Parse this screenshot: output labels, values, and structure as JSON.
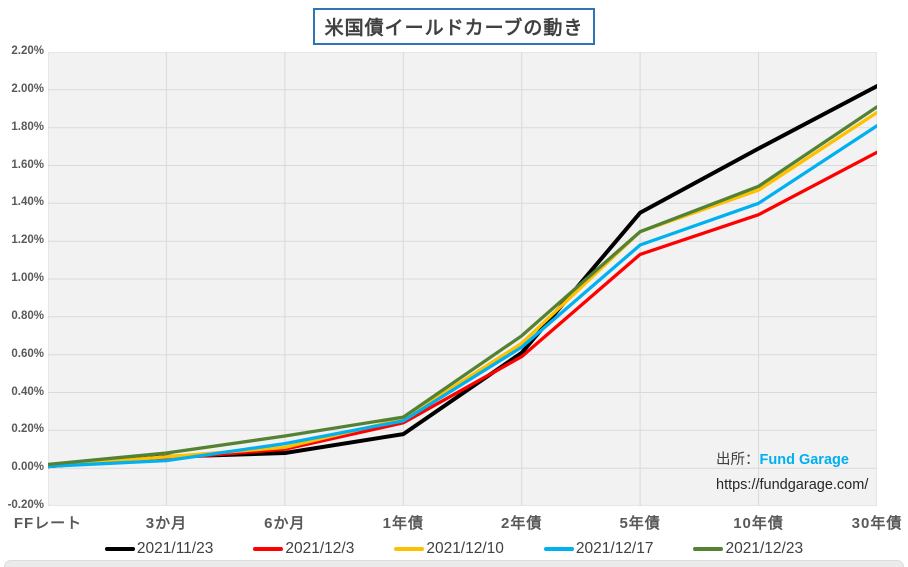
{
  "title": "米国債イールドカーブの動き",
  "source": {
    "label": "出所：",
    "name": "Fund Garage",
    "url": "https://fundgarage.com/"
  },
  "chart_data": {
    "type": "line",
    "title": "米国債イールドカーブの動き",
    "categories": [
      "FFレート",
      "3か月",
      "6か月",
      "1年債",
      "2年債",
      "5年債",
      "10年債",
      "30年債"
    ],
    "series": [
      {
        "name": "2021/11/23",
        "color": "#000000",
        "values": [
          0.01,
          0.06,
          0.08,
          0.18,
          0.61,
          1.35,
          1.69,
          2.02
        ]
      },
      {
        "name": "2021/12/3",
        "color": "#ff0000",
        "values": [
          0.01,
          0.05,
          0.1,
          0.24,
          0.59,
          1.13,
          1.34,
          1.67
        ]
      },
      {
        "name": "2021/12/10",
        "color": "#ffc000",
        "values": [
          0.01,
          0.06,
          0.11,
          0.26,
          0.66,
          1.25,
          1.47,
          1.88
        ]
      },
      {
        "name": "2021/12/17",
        "color": "#00b0f0",
        "values": [
          0.01,
          0.04,
          0.13,
          0.25,
          0.64,
          1.18,
          1.4,
          1.81
        ]
      },
      {
        "name": "2021/12/23",
        "color": "#548235",
        "values": [
          0.02,
          0.08,
          0.17,
          0.27,
          0.7,
          1.25,
          1.49,
          1.91
        ]
      }
    ],
    "ylim": [
      -0.2,
      2.2
    ],
    "y_step": 0.2,
    "y_tick_labels": [
      "2.20%",
      "2.00%",
      "1.80%",
      "1.60%",
      "1.40%",
      "1.20%",
      "1.00%",
      "0.80%",
      "0.60%",
      "0.40%",
      "0.20%",
      "0.00%",
      "-0.20%"
    ],
    "grid": true,
    "legend_position": "bottom",
    "plot_bg": "#f2f2f2",
    "grid_color": "#d9d9d9"
  }
}
